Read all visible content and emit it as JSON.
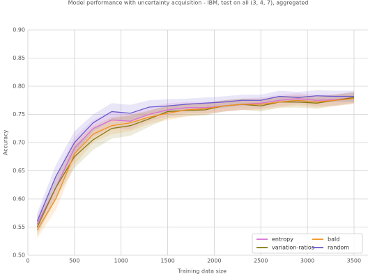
{
  "chart_data": {
    "type": "line",
    "title": "Model performance with uncertainty acquisition - IBM, test on all (3, 4, 7), aggregated",
    "xlabel": "Training data size",
    "ylabel": "Accuracy",
    "x": [
      100,
      300,
      500,
      700,
      900,
      1100,
      1300,
      1500,
      1700,
      1900,
      2100,
      2300,
      2500,
      2700,
      2900,
      3100,
      3300,
      3500
    ],
    "series": [
      {
        "name": "entropy",
        "color": "#d96fd6",
        "values": [
          0.555,
          0.62,
          0.69,
          0.725,
          0.74,
          0.738,
          0.75,
          0.758,
          0.762,
          0.762,
          0.765,
          0.768,
          0.77,
          0.775,
          0.778,
          0.775,
          0.776,
          0.78
        ],
        "std": [
          0.015,
          0.02,
          0.02,
          0.015,
          0.015,
          0.015,
          0.012,
          0.012,
          0.01,
          0.01,
          0.01,
          0.01,
          0.01,
          0.01,
          0.01,
          0.01,
          0.01,
          0.01
        ]
      },
      {
        "name": "variation-ratios",
        "color": "#857a10",
        "values": [
          0.55,
          0.62,
          0.675,
          0.705,
          0.725,
          0.73,
          0.742,
          0.755,
          0.757,
          0.758,
          0.765,
          0.768,
          0.765,
          0.772,
          0.772,
          0.77,
          0.775,
          0.78
        ],
        "std": [
          0.015,
          0.02,
          0.02,
          0.018,
          0.018,
          0.018,
          0.014,
          0.012,
          0.01,
          0.01,
          0.01,
          0.01,
          0.01,
          0.01,
          0.01,
          0.01,
          0.01,
          0.01
        ]
      },
      {
        "name": "bald",
        "color": "#f0901a",
        "values": [
          0.545,
          0.6,
          0.68,
          0.715,
          0.73,
          0.735,
          0.745,
          0.752,
          0.758,
          0.76,
          0.765,
          0.768,
          0.768,
          0.772,
          0.775,
          0.772,
          0.775,
          0.778
        ],
        "std": [
          0.015,
          0.02,
          0.02,
          0.015,
          0.015,
          0.015,
          0.012,
          0.012,
          0.012,
          0.01,
          0.01,
          0.01,
          0.01,
          0.01,
          0.01,
          0.01,
          0.01,
          0.01
        ]
      },
      {
        "name": "random",
        "color": "#6a5acd",
        "values": [
          0.56,
          0.64,
          0.7,
          0.735,
          0.755,
          0.752,
          0.763,
          0.765,
          0.768,
          0.77,
          0.772,
          0.775,
          0.775,
          0.782,
          0.78,
          0.783,
          0.782,
          0.782
        ],
        "std": [
          0.015,
          0.02,
          0.02,
          0.015,
          0.015,
          0.015,
          0.012,
          0.012,
          0.01,
          0.01,
          0.01,
          0.01,
          0.01,
          0.01,
          0.01,
          0.01,
          0.01,
          0.01
        ]
      }
    ],
    "xlim": [
      0,
      3650
    ],
    "xticks": [
      0,
      500,
      1000,
      1500,
      2000,
      2500,
      3000,
      3500
    ],
    "ylim": [
      0.5,
      0.9
    ],
    "yticks": [
      {
        "value": 0.5,
        "label": "0.50"
      },
      {
        "value": 0.55,
        "label": "0.55"
      },
      {
        "value": 0.6,
        "label": "0.60"
      },
      {
        "value": 0.65,
        "label": "0.65"
      },
      {
        "value": 0.7,
        "label": "0.70"
      },
      {
        "value": 0.75,
        "label": "0.75"
      },
      {
        "value": 0.8,
        "label": "0.80"
      },
      {
        "value": 0.85,
        "label": "0.85"
      },
      {
        "value": 0.9,
        "label": "0.90"
      }
    ],
    "grid": true,
    "legend": "lower right"
  }
}
